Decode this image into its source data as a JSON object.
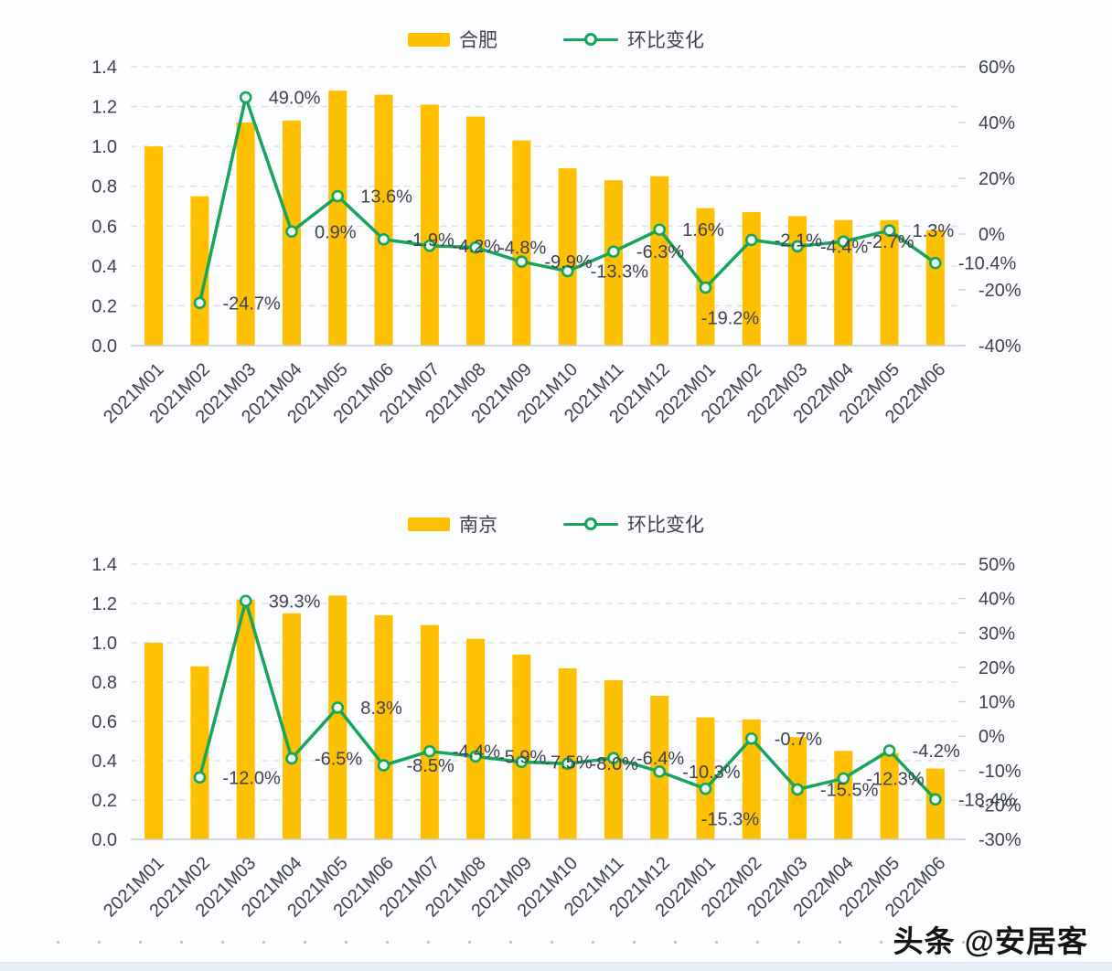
{
  "watermark": "头条 @安居客",
  "colors": {
    "bar": "#FFC000",
    "line": "#17A45C",
    "marker_fill": "#effaf3",
    "grid": "#d9dde2",
    "axis": "#c6ccd4",
    "text": "#3f4150"
  },
  "chart_data": [
    {
      "type": "bar+line",
      "legend": {
        "bar": "合肥",
        "line": "环比变化"
      },
      "legend_position": "top-center",
      "grid": "horizontal-dashed",
      "categories": [
        "2021M01",
        "2021M02",
        "2021M03",
        "2021M04",
        "2021M05",
        "2021M06",
        "2021M07",
        "2021M08",
        "2021M09",
        "2021M10",
        "2021M11",
        "2021M12",
        "2022M01",
        "2022M02",
        "2022M03",
        "2022M04",
        "2022M05",
        "2022M06"
      ],
      "bar_values": [
        1.0,
        0.75,
        1.12,
        1.13,
        1.28,
        1.26,
        1.21,
        1.15,
        1.03,
        0.89,
        0.83,
        0.85,
        0.69,
        0.67,
        0.65,
        0.63,
        0.63,
        0.58
      ],
      "line_values_pct": [
        null,
        -24.7,
        49.0,
        0.9,
        13.6,
        -1.9,
        -4.2,
        -4.8,
        -9.9,
        -13.3,
        -6.3,
        1.6,
        -19.2,
        -2.1,
        -4.4,
        -2.7,
        1.3,
        -10.4
      ],
      "line_labels": [
        "",
        "-24.7%",
        "49.0%",
        "0.9%",
        "13.6%",
        "-1.9%",
        "-4.2%",
        "-4.8%",
        "-9.9%",
        "-13.3%",
        "-6.3%",
        "1.6%",
        "-19.2%",
        "-2.1%",
        "-4.4%",
        "-2.7%",
        "1.3%",
        "-10.4%"
      ],
      "label_pos": [
        "r",
        "r",
        "r",
        "r",
        "r",
        "r",
        "r",
        "r",
        "r",
        "r",
        "r",
        "r",
        "b",
        "r",
        "r",
        "r",
        "r",
        "r"
      ],
      "left_axis": {
        "min": 0.0,
        "max": 1.4,
        "ticks": [
          "1.4",
          "1.2",
          "1.0",
          "0.8",
          "0.6",
          "0.4",
          "0.2",
          "0.0"
        ]
      },
      "right_axis": {
        "min": -40,
        "max": 60,
        "ticks": [
          "60%",
          "40%",
          "20%",
          "0%",
          "-20%",
          "-40%"
        ]
      }
    },
    {
      "type": "bar+line",
      "legend": {
        "bar": "南京",
        "line": "环比变化"
      },
      "legend_position": "top-center",
      "grid": "horizontal-dashed",
      "categories": [
        "2021M01",
        "2021M02",
        "2021M03",
        "2021M04",
        "2021M05",
        "2021M06",
        "2021M07",
        "2021M08",
        "2021M09",
        "2021M10",
        "2021M11",
        "2021M12",
        "2022M01",
        "2022M02",
        "2022M03",
        "2022M04",
        "2022M05",
        "2022M06"
      ],
      "bar_values": [
        1.0,
        0.88,
        1.22,
        1.15,
        1.24,
        1.14,
        1.09,
        1.02,
        0.94,
        0.87,
        0.81,
        0.73,
        0.62,
        0.61,
        0.52,
        0.45,
        0.44,
        0.36
      ],
      "line_values_pct": [
        null,
        -12.0,
        39.3,
        -6.5,
        8.3,
        -8.5,
        -4.4,
        -5.9,
        -7.5,
        -8.0,
        -6.4,
        -10.3,
        -15.3,
        -0.7,
        -15.5,
        -12.3,
        -4.2,
        -18.4
      ],
      "line_labels": [
        "",
        "-12.0%",
        "39.3%",
        "-6.5%",
        "8.3%",
        "-8.5%",
        "-4.4%",
        "-5.9%",
        "-7.5%",
        "-8.0%",
        "-6.4%",
        "-10.3%",
        "-15.3%",
        "-0.7%",
        "-15.5%",
        "-12.3%",
        "-4.2%",
        "-18.4%"
      ],
      "label_pos": [
        "r",
        "r",
        "r",
        "r",
        "r",
        "r",
        "r",
        "r",
        "r",
        "r",
        "r",
        "r",
        "b",
        "r",
        "r",
        "r",
        "r",
        "r"
      ],
      "left_axis": {
        "min": 0.0,
        "max": 1.4,
        "ticks": [
          "1.4",
          "1.2",
          "1.0",
          "0.8",
          "0.6",
          "0.4",
          "0.2",
          "0.0"
        ]
      },
      "right_axis": {
        "min": -30,
        "max": 50,
        "ticks": [
          "50%",
          "40%",
          "30%",
          "20%",
          "10%",
          "0%",
          "-10%",
          "-20%",
          "-30%"
        ]
      }
    }
  ]
}
